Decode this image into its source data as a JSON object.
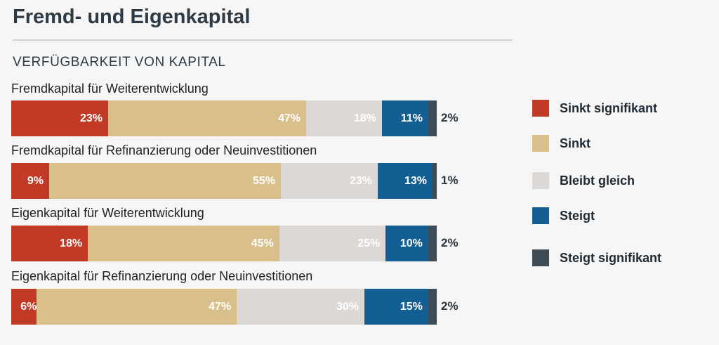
{
  "header": {
    "title": "Fremd- und Eigenkapital",
    "subtitle": "VERFÜGBARKEIT VON KAPITAL"
  },
  "colors": {
    "sinkt_signifikant": "#c03a25",
    "sinkt": "#d9c08a",
    "bleibt_gleich": "#dcd8d6",
    "steigt": "#135f93",
    "steigt_signifikant": "#3f4c56"
  },
  "chart_data": {
    "type": "bar",
    "orientation": "horizontal",
    "stacked": true,
    "categories": [
      "Fremdkapital für Weiterentwicklung",
      "Fremdkapital für Refinanzierung oder Neuinvestitionen",
      "Eigenkapital für Weiterentwicklung",
      "Eigenkapital für Refinanzierung oder Neuinvestitionen"
    ],
    "series": [
      {
        "name": "Sinkt signifikant",
        "values": [
          23,
          9,
          18,
          6
        ],
        "labels": [
          "23%",
          "9%",
          "18%",
          "6%"
        ]
      },
      {
        "name": "Sinkt",
        "values": [
          47,
          55,
          45,
          47
        ],
        "labels": [
          "47%",
          "55%",
          "45%",
          "47%"
        ]
      },
      {
        "name": "Bleibt gleich",
        "values": [
          18,
          23,
          25,
          30
        ],
        "labels": [
          "18%",
          "23%",
          "25%",
          "30%"
        ]
      },
      {
        "name": "Steigt",
        "values": [
          11,
          13,
          10,
          15
        ],
        "labels": [
          "11%",
          "13%",
          "10%",
          "15%"
        ]
      },
      {
        "name": "Steigt signifikant",
        "values": [
          2,
          1,
          2,
          2
        ],
        "labels": [
          "2%",
          "1%",
          "2%",
          "2%"
        ]
      }
    ],
    "xlim": [
      0,
      100
    ],
    "legend_position": "right"
  }
}
